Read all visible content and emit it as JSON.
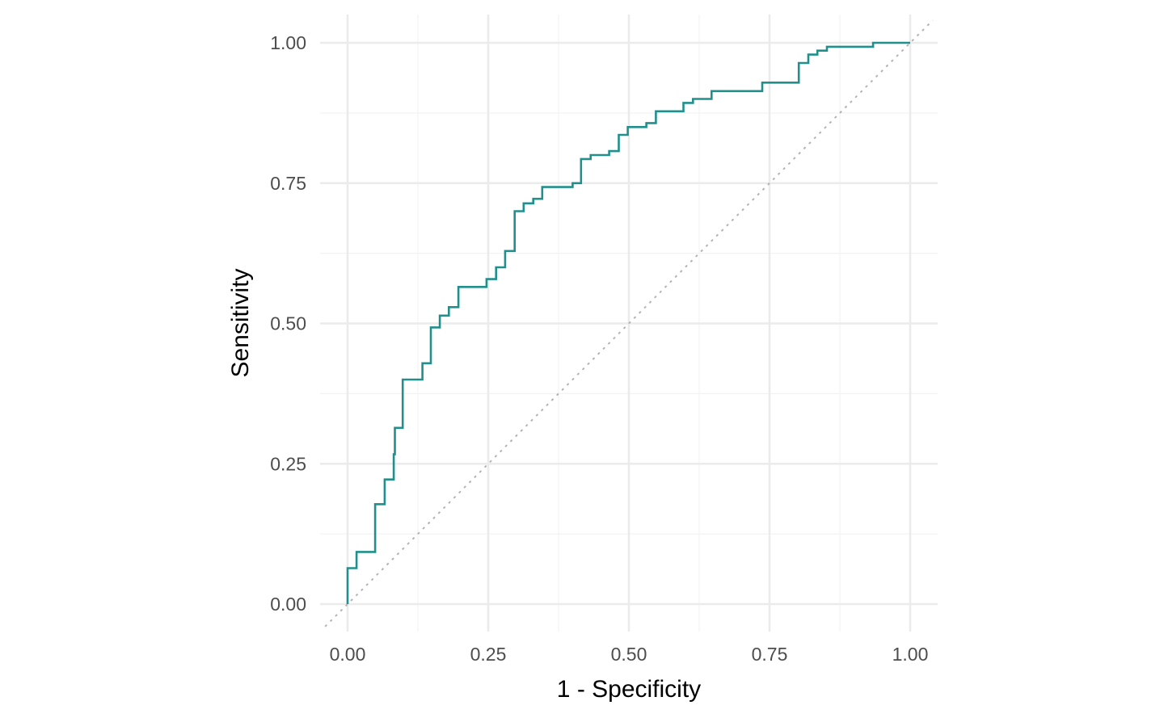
{
  "chart_data": {
    "type": "line",
    "title": "",
    "xlabel": "1 - Specificity",
    "ylabel": "Sensitivity",
    "xlim": [
      0,
      1
    ],
    "ylim": [
      0,
      1
    ],
    "grid": true,
    "legend": "none",
    "x_ticks": [
      "0.00",
      "0.25",
      "0.50",
      "0.75",
      "1.00"
    ],
    "y_ticks": [
      "0.00",
      "0.25",
      "0.50",
      "0.75",
      "1.00"
    ],
    "colors": {
      "roc": "#21908C",
      "reference": "#b3b3b3"
    },
    "series": [
      {
        "style": "step",
        "points": [
          [
            0.0,
            0.0
          ],
          [
            0.0,
            0.064
          ],
          [
            0.016,
            0.064
          ],
          [
            0.016,
            0.093
          ],
          [
            0.049,
            0.093
          ],
          [
            0.049,
            0.178
          ],
          [
            0.066,
            0.178
          ],
          [
            0.066,
            0.222
          ],
          [
            0.082,
            0.222
          ],
          [
            0.082,
            0.267
          ],
          [
            0.084,
            0.267
          ],
          [
            0.084,
            0.314
          ],
          [
            0.098,
            0.314
          ],
          [
            0.098,
            0.4
          ],
          [
            0.133,
            0.4
          ],
          [
            0.133,
            0.429
          ],
          [
            0.148,
            0.429
          ],
          [
            0.148,
            0.493
          ],
          [
            0.164,
            0.493
          ],
          [
            0.164,
            0.514
          ],
          [
            0.18,
            0.514
          ],
          [
            0.18,
            0.529
          ],
          [
            0.197,
            0.529
          ],
          [
            0.197,
            0.565
          ],
          [
            0.247,
            0.565
          ],
          [
            0.247,
            0.579
          ],
          [
            0.264,
            0.579
          ],
          [
            0.264,
            0.6
          ],
          [
            0.28,
            0.6
          ],
          [
            0.28,
            0.629
          ],
          [
            0.297,
            0.629
          ],
          [
            0.297,
            0.7
          ],
          [
            0.313,
            0.7
          ],
          [
            0.313,
            0.714
          ],
          [
            0.33,
            0.714
          ],
          [
            0.33,
            0.722
          ],
          [
            0.346,
            0.722
          ],
          [
            0.346,
            0.743
          ],
          [
            0.4,
            0.743
          ],
          [
            0.4,
            0.75
          ],
          [
            0.415,
            0.75
          ],
          [
            0.415,
            0.793
          ],
          [
            0.432,
            0.793
          ],
          [
            0.432,
            0.8
          ],
          [
            0.465,
            0.8
          ],
          [
            0.465,
            0.807
          ],
          [
            0.482,
            0.807
          ],
          [
            0.482,
            0.836
          ],
          [
            0.498,
            0.836
          ],
          [
            0.498,
            0.85
          ],
          [
            0.531,
            0.85
          ],
          [
            0.531,
            0.857
          ],
          [
            0.548,
            0.857
          ],
          [
            0.548,
            0.878
          ],
          [
            0.597,
            0.878
          ],
          [
            0.597,
            0.893
          ],
          [
            0.614,
            0.893
          ],
          [
            0.614,
            0.9
          ],
          [
            0.647,
            0.9
          ],
          [
            0.647,
            0.914
          ],
          [
            0.737,
            0.914
          ],
          [
            0.737,
            0.929
          ],
          [
            0.802,
            0.929
          ],
          [
            0.802,
            0.964
          ],
          [
            0.819,
            0.964
          ],
          [
            0.819,
            0.979
          ],
          [
            0.835,
            0.979
          ],
          [
            0.835,
            0.986
          ],
          [
            0.852,
            0.986
          ],
          [
            0.852,
            0.993
          ],
          [
            0.934,
            0.993
          ],
          [
            0.934,
            1.0
          ],
          [
            1.0,
            1.0
          ]
        ]
      }
    ],
    "reference_line": [
      [
        -0.04,
        -0.04
      ],
      [
        1.04,
        1.04
      ]
    ]
  }
}
